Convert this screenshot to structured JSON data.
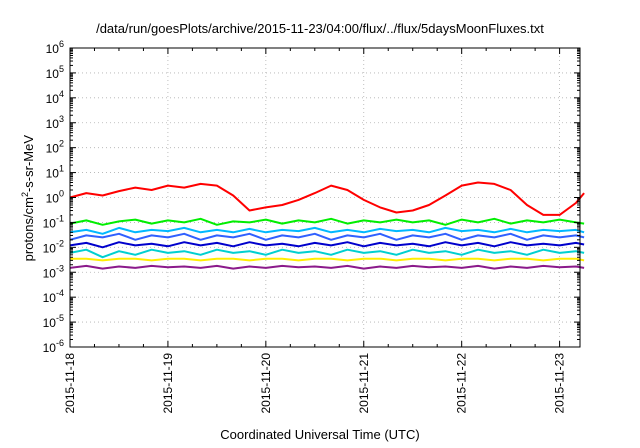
{
  "chart_data": {
    "type": "line",
    "title": "/data/run/goesPlots/archive/2015-11-23/04:00/flux/../flux/5daysMoonFluxes.txt",
    "xlabel": "Coordinated Universal Time (UTC)",
    "ylabel": "protons/cm²-s-sr-MeV",
    "ylabel_base": "protons/cm",
    "ylabel_sup": "2",
    "ylabel_rest": "-s-sr-MeV",
    "yscale": "log",
    "ylim": [
      1e-06,
      1000000.0
    ],
    "xlim": [
      "2015-11-18 00:00",
      "2015-11-23 05:00"
    ],
    "x_ticks": [
      "2015-11-18",
      "2015-11-19",
      "2015-11-20",
      "2015-11-21",
      "2015-11-22",
      "2015-11-23"
    ],
    "y_ticks": [
      {
        "base": "10",
        "exp": "-6"
      },
      {
        "base": "10",
        "exp": "-5"
      },
      {
        "base": "10",
        "exp": "-4"
      },
      {
        "base": "10",
        "exp": "-3"
      },
      {
        "base": "10",
        "exp": "-2"
      },
      {
        "base": "10",
        "exp": "-1"
      },
      {
        "base": "10",
        "exp": "0"
      },
      {
        "base": "10",
        "exp": "1"
      },
      {
        "base": "10",
        "exp": "2"
      },
      {
        "base": "10",
        "exp": "3"
      },
      {
        "base": "10",
        "exp": "4"
      },
      {
        "base": "10",
        "exp": "5"
      },
      {
        "base": "10",
        "exp": "6"
      }
    ],
    "grid": true,
    "x_hours": [
      0,
      4,
      8,
      12,
      16,
      20,
      24,
      28,
      32,
      36,
      40,
      44,
      48,
      52,
      56,
      60,
      64,
      68,
      72,
      76,
      80,
      84,
      88,
      92,
      96,
      100,
      104,
      108,
      112,
      116,
      120,
      124,
      126
    ],
    "series": [
      {
        "color": "#ff0000",
        "values": [
          1.0,
          1.5,
          1.2,
          1.8,
          2.5,
          2.0,
          3.0,
          2.5,
          3.5,
          3.0,
          1.2,
          0.3,
          0.4,
          0.5,
          0.8,
          1.5,
          3.0,
          2.0,
          0.8,
          0.4,
          0.25,
          0.3,
          0.5,
          1.2,
          3.0,
          4.0,
          3.5,
          2.0,
          0.5,
          0.2,
          0.2,
          0.6,
          1.5
        ]
      },
      {
        "color": "#00ee00",
        "values": [
          0.09,
          0.12,
          0.08,
          0.11,
          0.13,
          0.09,
          0.12,
          0.1,
          0.14,
          0.08,
          0.11,
          0.1,
          0.13,
          0.09,
          0.12,
          0.1,
          0.14,
          0.09,
          0.12,
          0.1,
          0.13,
          0.1,
          0.12,
          0.08,
          0.13,
          0.1,
          0.14,
          0.09,
          0.12,
          0.1,
          0.13,
          0.1,
          0.09
        ]
      },
      {
        "color": "#00b8ff",
        "values": [
          0.04,
          0.05,
          0.035,
          0.06,
          0.04,
          0.05,
          0.045,
          0.06,
          0.04,
          0.05,
          0.04,
          0.055,
          0.04,
          0.05,
          0.045,
          0.06,
          0.04,
          0.05,
          0.04,
          0.055,
          0.045,
          0.05,
          0.04,
          0.06,
          0.045,
          0.05,
          0.04,
          0.055,
          0.04,
          0.05,
          0.045,
          0.05,
          0.04
        ]
      },
      {
        "color": "#3060ff",
        "values": [
          0.02,
          0.03,
          0.025,
          0.035,
          0.02,
          0.03,
          0.025,
          0.035,
          0.02,
          0.03,
          0.025,
          0.035,
          0.02,
          0.03,
          0.025,
          0.035,
          0.02,
          0.03,
          0.025,
          0.035,
          0.02,
          0.03,
          0.025,
          0.035,
          0.02,
          0.03,
          0.025,
          0.035,
          0.02,
          0.03,
          0.025,
          0.03,
          0.025
        ]
      },
      {
        "color": "#0000cc",
        "values": [
          0.012,
          0.015,
          0.01,
          0.016,
          0.012,
          0.014,
          0.011,
          0.016,
          0.012,
          0.015,
          0.011,
          0.016,
          0.012,
          0.014,
          0.011,
          0.015,
          0.012,
          0.016,
          0.011,
          0.015,
          0.012,
          0.014,
          0.011,
          0.016,
          0.012,
          0.015,
          0.011,
          0.016,
          0.012,
          0.014,
          0.012,
          0.015,
          0.013
        ]
      },
      {
        "color": "#00d0d0",
        "values": [
          0.006,
          0.008,
          0.004,
          0.007,
          0.005,
          0.008,
          0.006,
          0.007,
          0.005,
          0.008,
          0.006,
          0.007,
          0.005,
          0.008,
          0.006,
          0.007,
          0.005,
          0.008,
          0.006,
          0.007,
          0.005,
          0.008,
          0.006,
          0.007,
          0.005,
          0.008,
          0.006,
          0.007,
          0.005,
          0.008,
          0.006,
          0.007,
          0.006
        ]
      },
      {
        "color": "#ffee00",
        "values": [
          0.0035,
          0.0035,
          0.003,
          0.0035,
          0.0035,
          0.003,
          0.0035,
          0.0035,
          0.003,
          0.0035,
          0.0035,
          0.003,
          0.0035,
          0.0035,
          0.003,
          0.0035,
          0.0035,
          0.003,
          0.0035,
          0.0035,
          0.003,
          0.0035,
          0.0035,
          0.003,
          0.0035,
          0.0035,
          0.003,
          0.0035,
          0.0035,
          0.003,
          0.0035,
          0.0035,
          0.003
        ]
      },
      {
        "color": "#8b1a8b",
        "values": [
          0.0015,
          0.0018,
          0.0014,
          0.0017,
          0.0015,
          0.0018,
          0.0016,
          0.0017,
          0.0015,
          0.0018,
          0.0014,
          0.0017,
          0.0015,
          0.0018,
          0.0016,
          0.0017,
          0.0015,
          0.0018,
          0.0014,
          0.0017,
          0.0015,
          0.0018,
          0.0016,
          0.0017,
          0.0015,
          0.0018,
          0.0014,
          0.0017,
          0.0015,
          0.0018,
          0.0016,
          0.0017,
          0.0015
        ]
      }
    ]
  }
}
